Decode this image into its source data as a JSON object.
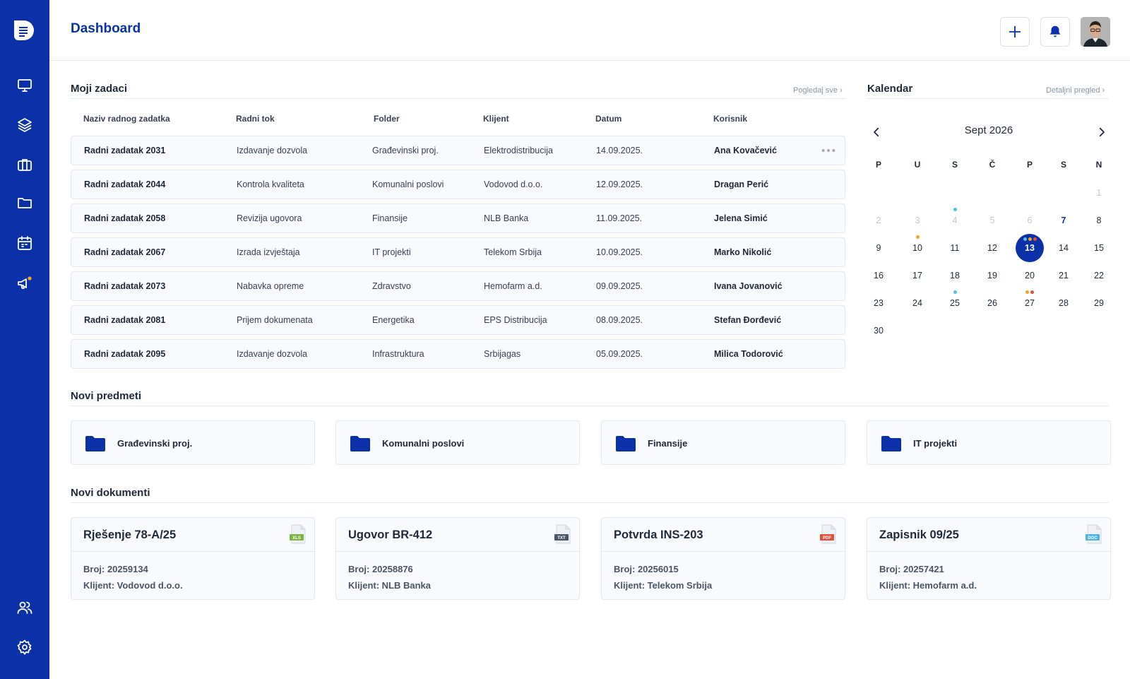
{
  "header": {
    "title": "Dashboard"
  },
  "colors": {
    "primary": "#0b30a8",
    "notification_dot": "#f5a524",
    "xls": "#7cb342",
    "txt": "#4a5568",
    "pdf": "#e0513c",
    "doc": "#4fb3e3"
  },
  "sidebar": {
    "items": [
      {
        "icon": "monitor-icon"
      },
      {
        "icon": "layers-icon"
      },
      {
        "icon": "briefcase-icon"
      },
      {
        "icon": "folder-icon"
      },
      {
        "icon": "calendar-icon"
      },
      {
        "icon": "megaphone-icon"
      },
      {
        "icon": "users-icon"
      },
      {
        "icon": "settings-icon"
      }
    ]
  },
  "tasks": {
    "title": "Moji zadaci",
    "link": "Pogledaj sve",
    "columns": [
      "Naziv radnog zadatka",
      "Radni tok",
      "Folder",
      "Klijent",
      "Datum",
      "Korisnik"
    ],
    "rows": [
      [
        "Radni zadatak 2031",
        "Izdavanje dozvola",
        "Građevinski proj.",
        "Elektrodistribucija",
        "14.09.2025.",
        "Ana Kovačević"
      ],
      [
        "Radni zadatak 2044",
        "Kontrola kvaliteta",
        "Komunalni poslovi",
        "Vodovod d.o.o.",
        "12.09.2025.",
        "Dragan Perić"
      ],
      [
        "Radni zadatak 2058",
        "Revizija ugovora",
        "Finansije",
        "NLB Banka",
        "11.09.2025.",
        "Jelena Simić"
      ],
      [
        "Radni zadatak 2067",
        "Izrada izvještaja",
        "IT projekti",
        "Telekom Srbija",
        "10.09.2025.",
        "Marko Nikolić"
      ],
      [
        "Radni zadatak 2073",
        "Nabavka opreme",
        "Zdravstvo",
        "Hemofarm a.d.",
        "09.09.2025.",
        "Ivana Jovanović"
      ],
      [
        "Radni zadatak 2081",
        "Prijem dokumenata",
        "Energetika",
        "EPS Distribucija",
        "08.09.2025.",
        "Stefan Đorđević"
      ],
      [
        "Radni zadatak 2095",
        "Izdavanje dozvola",
        "Infrastruktura",
        "Srbijagas",
        "05.09.2025.",
        "Milica Todorović"
      ]
    ]
  },
  "calendar": {
    "title": "Kalendar",
    "link": "Detaljni pregled",
    "month_label": "Sept 2026",
    "weekdays": [
      "P",
      "U",
      "S",
      "Č",
      "P",
      "S",
      "N"
    ],
    "weeks": [
      [
        "",
        "",
        "",
        "",
        "",
        "",
        "1"
      ],
      [
        "2",
        "3",
        "4",
        "5",
        "6",
        "7",
        "8"
      ],
      [
        "9",
        "10",
        "11",
        "12",
        "13",
        "14",
        "15"
      ],
      [
        "16",
        "17",
        "18",
        "19",
        "20",
        "21",
        "22"
      ],
      [
        "23",
        "24",
        "25",
        "26",
        "27",
        "28",
        "29"
      ],
      [
        "30",
        "",
        "",
        "",
        "",
        "",
        ""
      ]
    ],
    "muted_days": [
      "1",
      "2",
      "3",
      "4",
      "5",
      "6"
    ],
    "accent_day": "7",
    "selected_day": "13",
    "event_dots": [
      {
        "day": "4",
        "colors": [
          "#4fc3d7"
        ]
      },
      {
        "day": "10",
        "colors": [
          "#f5a524"
        ]
      },
      {
        "day": "13",
        "colors": [
          "#4fc3d7",
          "#f5a524",
          "#e0513c"
        ]
      },
      {
        "day": "25",
        "colors": [
          "#4fc3d7"
        ]
      },
      {
        "day": "27",
        "colors": [
          "#f5a524",
          "#e0513c"
        ]
      }
    ]
  },
  "subjects": {
    "title": "Novi predmeti",
    "items": [
      "Građevinski proj.",
      "Komunalni poslovi",
      "Finansije",
      "IT projekti"
    ]
  },
  "documents": {
    "title": "Novi dokumenti",
    "items": [
      {
        "title": "Rješenje 78-A/25",
        "number": "Broj: 20259134",
        "client": "Klijent: Vodovod d.o.o.",
        "type": "XLS"
      },
      {
        "title": "Ugovor BR-412",
        "number": "Broj: 20258876",
        "client": "Klijent: NLB Banka",
        "type": "TXT"
      },
      {
        "title": "Potvrda INS-203",
        "number": "Broj: 20256015",
        "client": "Klijent: Telekom Srbija",
        "type": "PDF"
      },
      {
        "title": "Zapisnik 09/25",
        "number": "Broj: 20257421",
        "client": "Klijent: Hemofarm a.d.",
        "type": "DOC"
      }
    ]
  }
}
